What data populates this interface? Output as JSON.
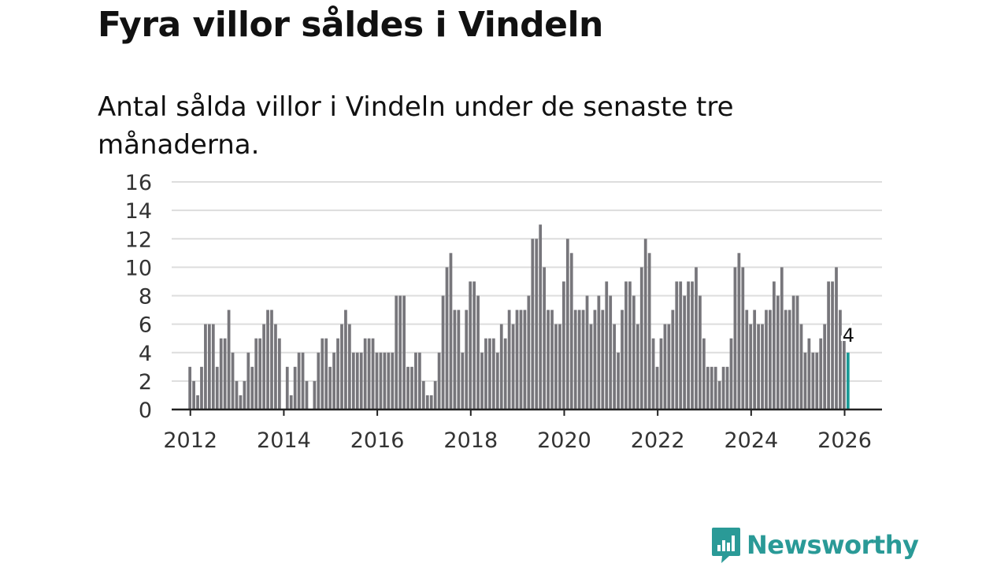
{
  "title": "Fyra villor såldes i Vindeln",
  "subtitle": "Antal sålda villor i Vindeln under de senaste tre månaderna.",
  "brand": {
    "name": "Newsworthy",
    "color": "#2a9a97"
  },
  "colors": {
    "bar": "#77767b",
    "highlight": "#1a9a96",
    "grid": "#dddddd",
    "axis": "#222222"
  },
  "chart_data": {
    "type": "bar",
    "title": "Fyra villor såldes i Vindeln",
    "xlabel": "",
    "ylabel": "",
    "ylim": [
      0,
      16
    ],
    "yticks": [
      0,
      2,
      4,
      6,
      8,
      10,
      12,
      14,
      16
    ],
    "xticks": [
      2012,
      2014,
      2016,
      2018,
      2020,
      2022,
      2024,
      2026
    ],
    "xlim": [
      2011.6,
      2026.8
    ],
    "start": 2012.0,
    "step": 0.08333,
    "grid": true,
    "series": [
      {
        "name": "Antal sålda villor",
        "values": [
          3,
          2,
          1,
          3,
          6,
          6,
          6,
          3,
          5,
          5,
          7,
          4,
          2,
          1,
          2,
          4,
          3,
          5,
          5,
          6,
          7,
          7,
          6,
          5,
          0,
          3,
          1,
          3,
          4,
          4,
          2,
          0,
          2,
          4,
          5,
          5,
          3,
          4,
          5,
          6,
          7,
          6,
          4,
          4,
          4,
          5,
          5,
          5,
          4,
          4,
          4,
          4,
          4,
          8,
          8,
          8,
          3,
          3,
          4,
          4,
          2,
          1,
          1,
          2,
          4,
          8,
          10,
          11,
          7,
          7,
          4,
          7,
          9,
          9,
          8,
          4,
          5,
          5,
          5,
          4,
          6,
          5,
          7,
          6,
          7,
          7,
          7,
          8,
          12,
          12,
          13,
          10,
          7,
          7,
          6,
          6,
          9,
          12,
          11,
          7,
          7,
          7,
          8,
          6,
          7,
          8,
          7,
          9,
          8,
          6,
          4,
          7,
          9,
          9,
          8,
          6,
          10,
          12,
          11,
          5,
          3,
          5,
          6,
          6,
          7,
          9,
          9,
          8,
          9,
          9,
          10,
          8,
          5,
          3,
          3,
          3,
          2,
          3,
          3,
          5,
          10,
          11,
          10,
          7,
          6,
          7,
          6,
          6,
          7,
          7,
          9,
          8,
          10,
          7,
          7,
          8,
          8,
          6,
          4,
          5,
          4,
          4,
          5,
          6,
          9,
          9,
          10,
          7,
          5,
          4
        ]
      }
    ],
    "annotation": {
      "label": "4",
      "index": 169
    }
  }
}
